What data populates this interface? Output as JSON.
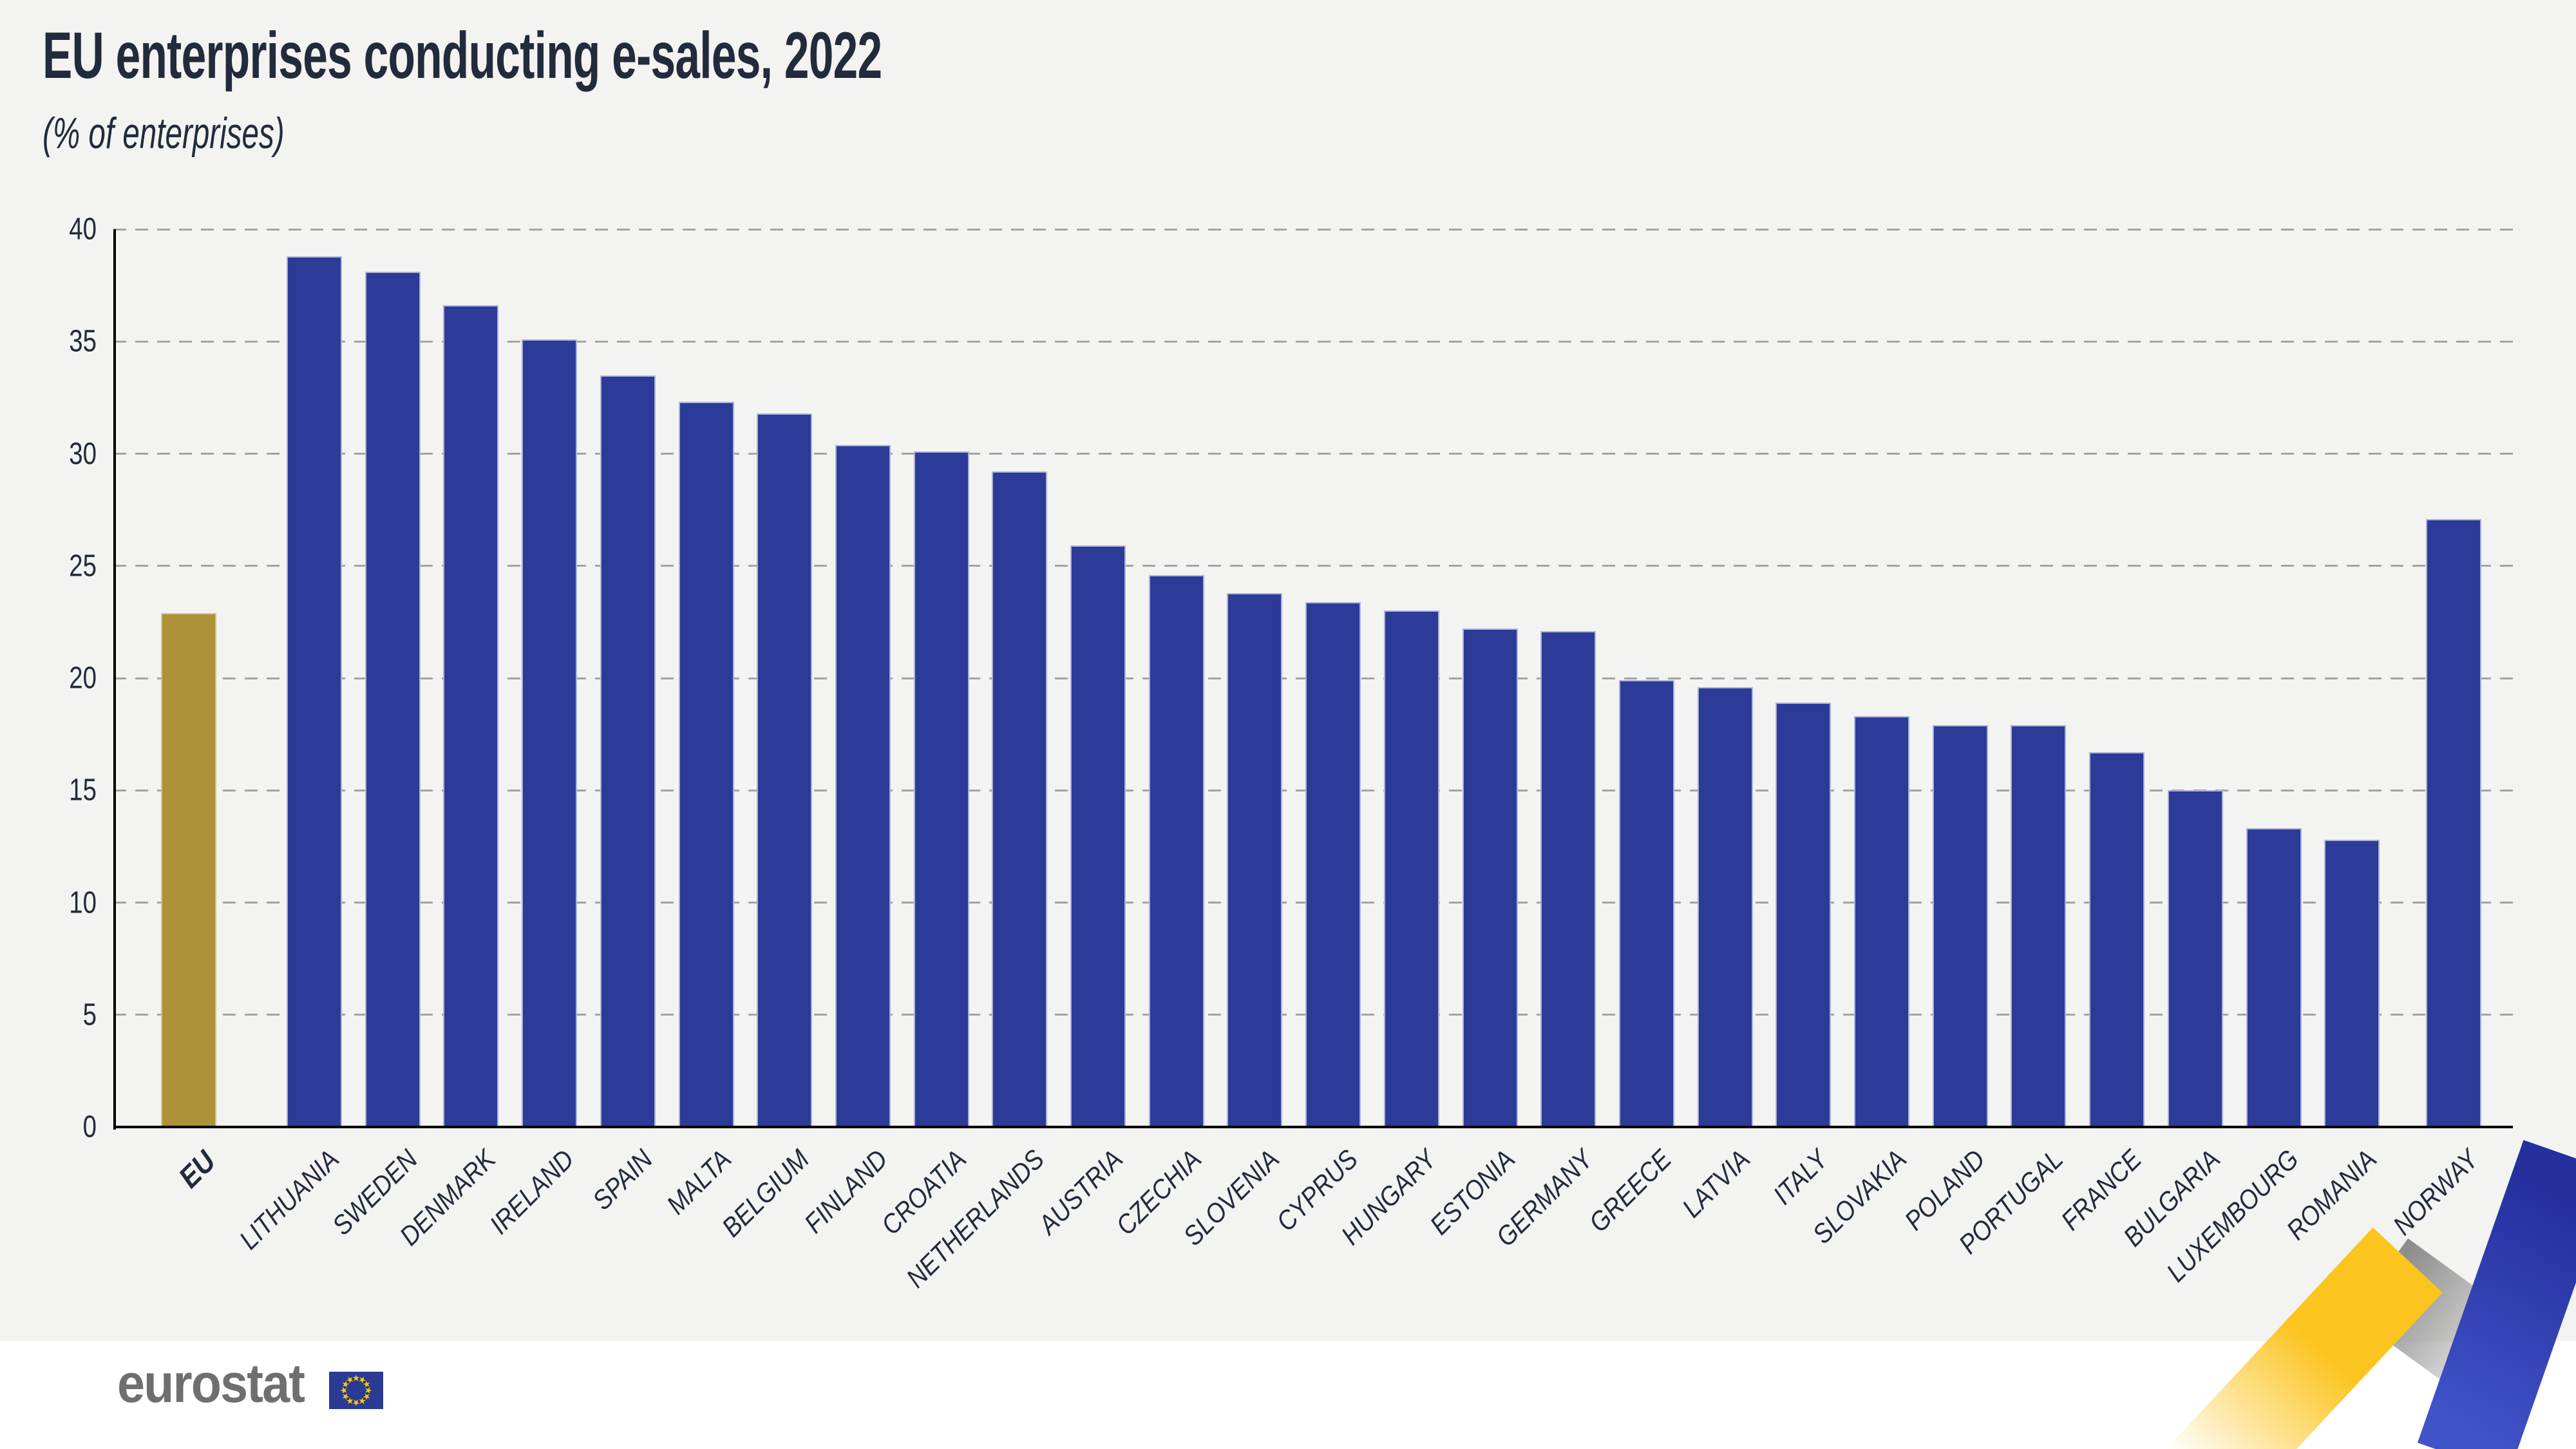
{
  "page": {
    "title": "EU enterprises conducting e-sales, 2022",
    "subtitle": "(% of enterprises)"
  },
  "chart_data": {
    "type": "bar",
    "title": "EU enterprises conducting e-sales, 2022",
    "subtitle": "(% of enterprises)",
    "xlabel": "",
    "ylabel": "% of enterprises",
    "ylim": [
      0,
      40
    ],
    "ytick_step": 5,
    "grid": "horizontal-dashed",
    "legend_position": "none",
    "categories": [
      "EU",
      "LITHUANIA",
      "SWEDEN",
      "DENMARK",
      "IRELAND",
      "SPAIN",
      "MALTA",
      "BELGIUM",
      "FINLAND",
      "CROATIA",
      "NETHERLANDS",
      "AUSTRIA",
      "CZECHIA",
      "SLOVENIA",
      "CYPRUS",
      "HUNGARY",
      "ESTONIA",
      "GERMANY",
      "GREECE",
      "LATVIA",
      "ITALY",
      "SLOVAKIA",
      "POLAND",
      "PORTUGAL",
      "FRANCE",
      "BULGARIA",
      "LUXEMBOURG",
      "ROMANIA",
      "NORWAY"
    ],
    "values": [
      22.9,
      38.8,
      38.1,
      36.6,
      35.1,
      33.5,
      32.3,
      31.8,
      30.4,
      30.1,
      29.2,
      25.9,
      24.6,
      23.8,
      23.4,
      23.0,
      22.2,
      22.1,
      19.9,
      19.6,
      18.9,
      18.3,
      17.9,
      17.9,
      16.7,
      15.0,
      13.3,
      12.8,
      27.1
    ],
    "highlight_index": 0,
    "separated_last_category": true
  },
  "colors": {
    "background": "#F3F3F1",
    "footer_background": "#FFFFFF",
    "bar_blue": "#2C3B97",
    "bar_blue_edge": "#AAB1DA",
    "bar_gold": "#AC9138",
    "bar_gold_edge": "#CEC593",
    "text": "#212B3B",
    "grid": "#A3A3A3",
    "axis": "#000000",
    "logo_gray": "#6F6F6E",
    "flag_blue": "#2B3B94",
    "flag_star_yellow": "#FFCC00",
    "ribbon_yellow": "#FCC41F",
    "ribbon_gray": "#8E8E8E",
    "ribbon_blue": "#3546B8"
  },
  "footer": {
    "logo_text": "eurostat",
    "logo_icon": "eu-flag-icon",
    "decoration_icon": "zigzag-ribbon-icon"
  }
}
